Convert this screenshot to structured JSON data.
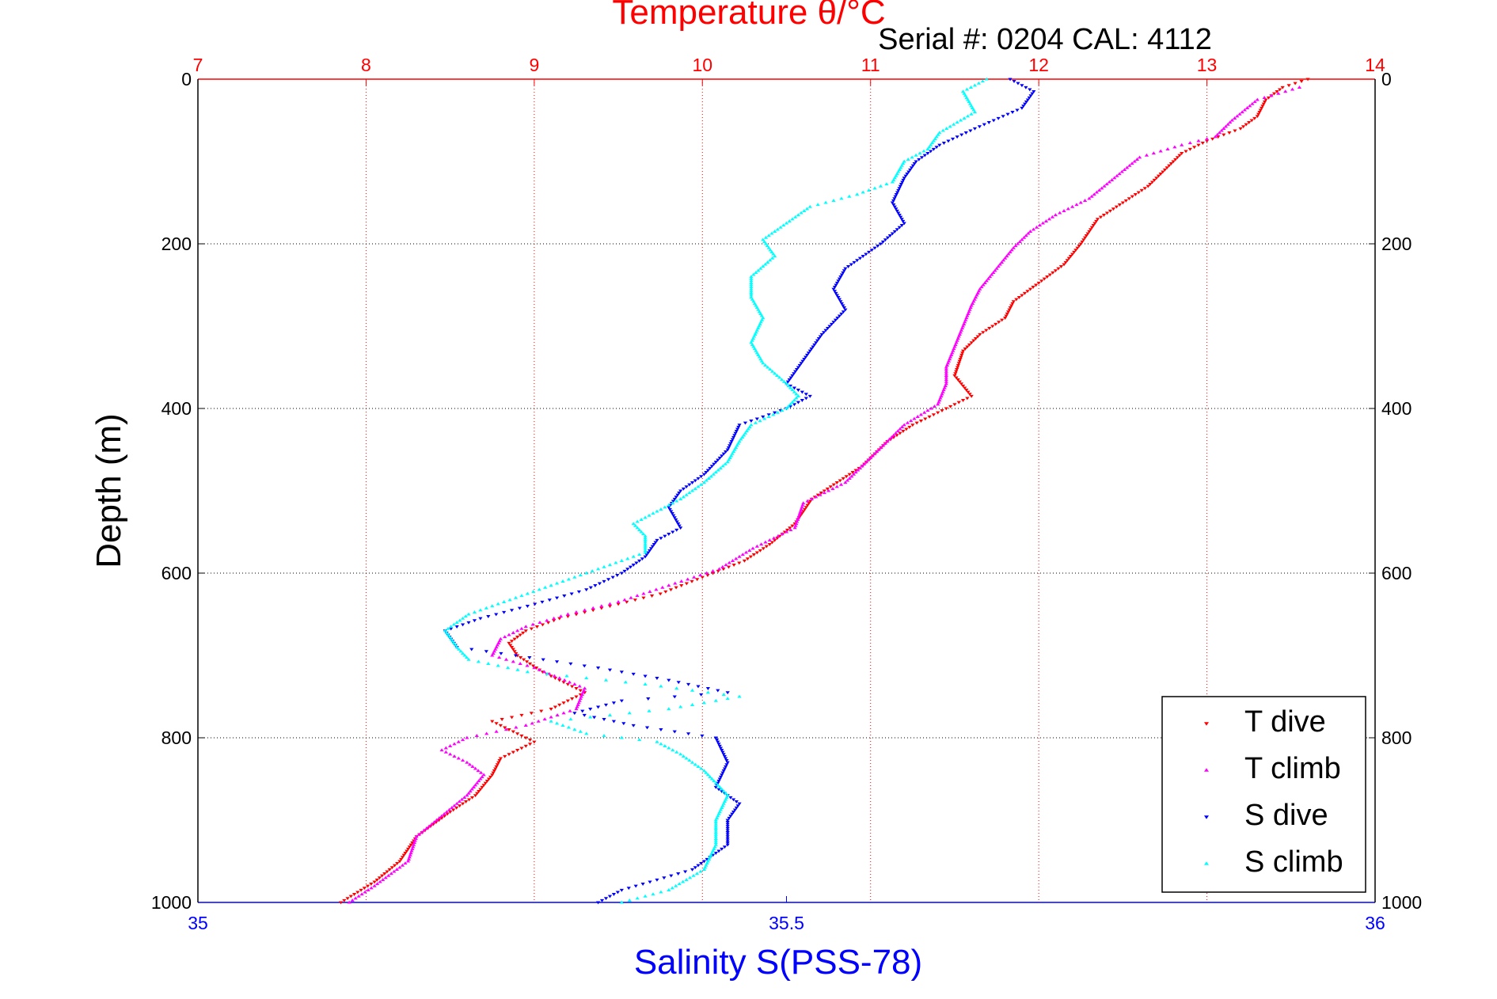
{
  "chart_data": {
    "type": "scatter",
    "title": "Temperature θ/°C",
    "subtitle": "Serial #: 0204  CAL: 4112",
    "ylabel": "Depth (m)",
    "xlabel_bottom": "Salinity S(PSS-78)",
    "y_axis": {
      "range": [
        0,
        1000
      ],
      "inverted": true,
      "ticks": [
        "0",
        "200",
        "400",
        "600",
        "800",
        "1000"
      ]
    },
    "temperature_axis": {
      "range": [
        7,
        14
      ],
      "ticks": [
        "7",
        "8",
        "9",
        "10",
        "11",
        "12",
        "13",
        "14"
      ],
      "color": "#ff0000"
    },
    "salinity_axis": {
      "range": [
        35,
        36
      ],
      "ticks": [
        "35",
        "35.5",
        "36"
      ],
      "color": "#0000ff"
    },
    "grid": true,
    "legend_position": "bottom-right",
    "series": [
      {
        "name": "T dive",
        "axis": "temperature",
        "color": "#ff0000",
        "marker": "triangle-down",
        "points": [
          [
            13.6,
            0
          ],
          [
            13.45,
            10
          ],
          [
            13.35,
            25
          ],
          [
            13.3,
            45
          ],
          [
            13.2,
            60
          ],
          [
            13.0,
            75
          ],
          [
            12.85,
            90
          ],
          [
            12.75,
            110
          ],
          [
            12.65,
            130
          ],
          [
            12.5,
            150
          ],
          [
            12.35,
            170
          ],
          [
            12.25,
            200
          ],
          [
            12.15,
            225
          ],
          [
            12.05,
            240
          ],
          [
            11.95,
            255
          ],
          [
            11.85,
            270
          ],
          [
            11.8,
            290
          ],
          [
            11.65,
            310
          ],
          [
            11.55,
            330
          ],
          [
            11.5,
            360
          ],
          [
            11.6,
            385
          ],
          [
            11.45,
            400
          ],
          [
            11.25,
            420
          ],
          [
            11.1,
            440
          ],
          [
            10.95,
            470
          ],
          [
            10.8,
            490
          ],
          [
            10.65,
            510
          ],
          [
            10.55,
            540
          ],
          [
            10.4,
            565
          ],
          [
            10.25,
            585
          ],
          [
            10.0,
            605
          ],
          [
            9.75,
            625
          ],
          [
            9.45,
            640
          ],
          [
            9.15,
            655
          ],
          [
            8.95,
            670
          ],
          [
            8.85,
            685
          ],
          [
            8.9,
            700
          ],
          [
            9.05,
            720
          ],
          [
            9.3,
            745
          ],
          [
            9.1,
            765
          ],
          [
            8.75,
            780
          ],
          [
            8.85,
            790
          ],
          [
            9.0,
            805
          ],
          [
            8.8,
            825
          ],
          [
            8.75,
            845
          ],
          [
            8.65,
            870
          ],
          [
            8.5,
            890
          ],
          [
            8.3,
            920
          ],
          [
            8.2,
            950
          ],
          [
            8.05,
            975
          ],
          [
            7.85,
            1000
          ]
        ]
      },
      {
        "name": "T climb",
        "axis": "temperature",
        "color": "#ff00ff",
        "marker": "triangle-up",
        "points": [
          [
            13.55,
            10
          ],
          [
            13.3,
            25
          ],
          [
            13.15,
            50
          ],
          [
            13.05,
            70
          ],
          [
            12.85,
            80
          ],
          [
            12.6,
            95
          ],
          [
            12.45,
            120
          ],
          [
            12.3,
            145
          ],
          [
            12.1,
            165
          ],
          [
            11.95,
            185
          ],
          [
            11.85,
            205
          ],
          [
            11.75,
            230
          ],
          [
            11.65,
            255
          ],
          [
            11.6,
            275
          ],
          [
            11.55,
            300
          ],
          [
            11.5,
            325
          ],
          [
            11.45,
            350
          ],
          [
            11.45,
            370
          ],
          [
            11.4,
            395
          ],
          [
            11.2,
            420
          ],
          [
            11.1,
            440
          ],
          [
            10.95,
            470
          ],
          [
            10.85,
            490
          ],
          [
            10.6,
            515
          ],
          [
            10.55,
            545
          ],
          [
            10.3,
            570
          ],
          [
            10.1,
            595
          ],
          [
            9.8,
            615
          ],
          [
            9.5,
            635
          ],
          [
            9.2,
            650
          ],
          [
            8.95,
            665
          ],
          [
            8.8,
            680
          ],
          [
            8.75,
            700
          ],
          [
            9.0,
            715
          ],
          [
            9.3,
            740
          ],
          [
            9.25,
            765
          ],
          [
            8.95,
            785
          ],
          [
            8.6,
            800
          ],
          [
            8.45,
            815
          ],
          [
            8.6,
            830
          ],
          [
            8.7,
            845
          ],
          [
            8.6,
            870
          ],
          [
            8.45,
            895
          ],
          [
            8.3,
            920
          ],
          [
            8.25,
            950
          ],
          [
            8.05,
            980
          ],
          [
            7.9,
            1000
          ]
        ]
      },
      {
        "name": "S dive",
        "axis": "salinity",
        "color": "#0000ff",
        "marker": "triangle-down",
        "points": [
          [
            35.69,
            0
          ],
          [
            35.71,
            15
          ],
          [
            35.7,
            35
          ],
          [
            35.66,
            60
          ],
          [
            35.63,
            80
          ],
          [
            35.61,
            100
          ],
          [
            35.6,
            120
          ],
          [
            35.59,
            150
          ],
          [
            35.6,
            175
          ],
          [
            35.58,
            200
          ],
          [
            35.55,
            230
          ],
          [
            35.54,
            255
          ],
          [
            35.55,
            280
          ],
          [
            35.53,
            310
          ],
          [
            35.52,
            330
          ],
          [
            35.51,
            350
          ],
          [
            35.5,
            370
          ],
          [
            35.52,
            385
          ],
          [
            35.5,
            400
          ],
          [
            35.46,
            420
          ],
          [
            35.45,
            450
          ],
          [
            35.43,
            480
          ],
          [
            35.41,
            500
          ],
          [
            35.4,
            520
          ],
          [
            35.41,
            545
          ],
          [
            35.39,
            560
          ],
          [
            35.38,
            580
          ],
          [
            35.36,
            600
          ],
          [
            35.33,
            620
          ],
          [
            35.28,
            640
          ],
          [
            35.24,
            655
          ],
          [
            35.21,
            670
          ],
          [
            35.22,
            690
          ],
          [
            35.27,
            700
          ],
          [
            35.34,
            715
          ],
          [
            35.4,
            730
          ],
          [
            35.45,
            745
          ],
          [
            35.36,
            755
          ],
          [
            35.32,
            770
          ],
          [
            35.37,
            785
          ],
          [
            35.44,
            800
          ],
          [
            35.45,
            830
          ],
          [
            35.44,
            860
          ],
          [
            35.46,
            880
          ],
          [
            35.45,
            900
          ],
          [
            35.45,
            930
          ],
          [
            35.42,
            960
          ],
          [
            35.36,
            985
          ],
          [
            35.34,
            1000
          ]
        ]
      },
      {
        "name": "S climb",
        "axis": "salinity",
        "color": "#00ffff",
        "marker": "triangle-up",
        "points": [
          [
            35.67,
            0
          ],
          [
            35.65,
            15
          ],
          [
            35.66,
            40
          ],
          [
            35.63,
            65
          ],
          [
            35.62,
            85
          ],
          [
            35.6,
            100
          ],
          [
            35.59,
            125
          ],
          [
            35.56,
            140
          ],
          [
            35.52,
            155
          ],
          [
            35.5,
            175
          ],
          [
            35.48,
            195
          ],
          [
            35.49,
            215
          ],
          [
            35.47,
            240
          ],
          [
            35.47,
            265
          ],
          [
            35.48,
            290
          ],
          [
            35.47,
            320
          ],
          [
            35.48,
            345
          ],
          [
            35.5,
            370
          ],
          [
            35.51,
            385
          ],
          [
            35.5,
            400
          ],
          [
            35.47,
            420
          ],
          [
            35.46,
            440
          ],
          [
            35.45,
            465
          ],
          [
            35.43,
            490
          ],
          [
            35.41,
            510
          ],
          [
            35.39,
            525
          ],
          [
            35.37,
            540
          ],
          [
            35.38,
            555
          ],
          [
            35.38,
            575
          ],
          [
            35.35,
            590
          ],
          [
            35.31,
            610
          ],
          [
            35.27,
            630
          ],
          [
            35.23,
            650
          ],
          [
            35.21,
            670
          ],
          [
            35.22,
            690
          ],
          [
            35.23,
            705
          ],
          [
            35.28,
            720
          ],
          [
            35.38,
            735
          ],
          [
            35.46,
            750
          ],
          [
            35.4,
            765
          ],
          [
            35.3,
            780
          ],
          [
            35.33,
            795
          ],
          [
            35.39,
            805
          ],
          [
            35.41,
            820
          ],
          [
            35.43,
            840
          ],
          [
            35.45,
            870
          ],
          [
            35.44,
            900
          ],
          [
            35.44,
            930
          ],
          [
            35.43,
            960
          ],
          [
            35.4,
            985
          ],
          [
            35.36,
            1000
          ]
        ]
      }
    ]
  }
}
